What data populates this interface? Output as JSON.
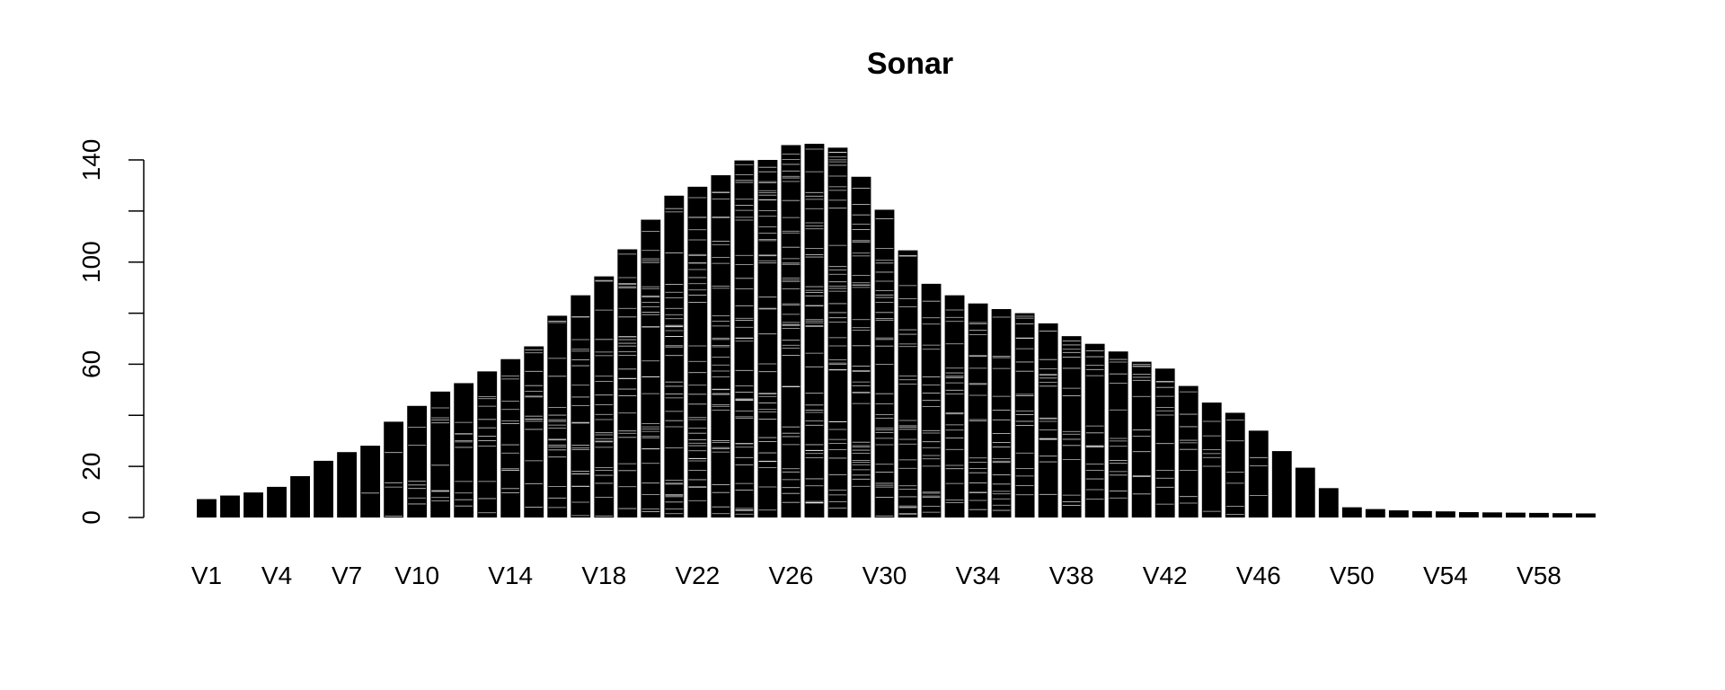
{
  "chart_data": {
    "type": "bar",
    "title": "Sonar",
    "xlabel": "",
    "ylabel": "",
    "ylim": [
      0,
      140
    ],
    "yticks": [
      0,
      20,
      60,
      100,
      140
    ],
    "yminor_ticks": [
      40,
      80,
      120
    ],
    "grid": false,
    "legend": "none",
    "bar_color": "#000000",
    "stripe_color": "#ffffff",
    "categories": [
      "V1",
      "V2",
      "V3",
      "V4",
      "V5",
      "V6",
      "V7",
      "V8",
      "V9",
      "V10",
      "V11",
      "V12",
      "V13",
      "V14",
      "V15",
      "V16",
      "V17",
      "V18",
      "V19",
      "V20",
      "V21",
      "V22",
      "V23",
      "V24",
      "V25",
      "V26",
      "V27",
      "V28",
      "V29",
      "V30",
      "V31",
      "V32",
      "V33",
      "V34",
      "V35",
      "V36",
      "V37",
      "V38",
      "V39",
      "V40",
      "V41",
      "V42",
      "V43",
      "V44",
      "V45",
      "V46",
      "V47",
      "V48",
      "V49",
      "V50",
      "V51",
      "V52",
      "V53",
      "V54",
      "V55",
      "V56",
      "V57",
      "V58",
      "V59",
      "V60"
    ],
    "shown_tick_labels": [
      "V1",
      "V4",
      "V7",
      "V10",
      "V14",
      "V18",
      "V22",
      "V26",
      "V30",
      "V34",
      "V38",
      "V42",
      "V46",
      "V50",
      "V54",
      "V58"
    ],
    "values": [
      7.2,
      8.6,
      9.8,
      12.0,
      16.2,
      22.2,
      25.6,
      28.1,
      37.5,
      43.7,
      49.3,
      52.6,
      57.2,
      62.0,
      67.0,
      79.0,
      87.0,
      94.4,
      105.0,
      116.6,
      126.0,
      129.5,
      134.0,
      139.8,
      140.0,
      145.8,
      146.3,
      144.8,
      133.4,
      120.5,
      104.6,
      91.5,
      87.0,
      83.8,
      81.6,
      80.0,
      76.0,
      71.0,
      68.0,
      65.0,
      61.0,
      58.3,
      51.5,
      45.0,
      41.0,
      34.0,
      26.0,
      19.5,
      11.5,
      4.0,
      3.3,
      2.8,
      2.5,
      2.4,
      2.1,
      2.0,
      1.9,
      1.8,
      1.7,
      1.6
    ]
  }
}
